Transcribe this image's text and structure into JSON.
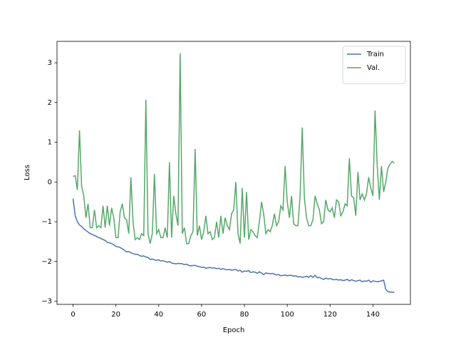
{
  "chart_data": {
    "type": "line",
    "xlabel": "Epoch",
    "ylabel": "Loss",
    "x": [
      0,
      1,
      2,
      3,
      4,
      5,
      6,
      7,
      8,
      9,
      10,
      11,
      12,
      13,
      14,
      15,
      16,
      17,
      18,
      19,
      20,
      21,
      22,
      23,
      24,
      25,
      26,
      27,
      28,
      29,
      30,
      31,
      32,
      33,
      34,
      35,
      36,
      37,
      38,
      39,
      40,
      41,
      42,
      43,
      44,
      45,
      46,
      47,
      48,
      49,
      50,
      51,
      52,
      53,
      54,
      55,
      56,
      57,
      58,
      59,
      60,
      61,
      62,
      63,
      64,
      65,
      66,
      67,
      68,
      69,
      70,
      71,
      72,
      73,
      74,
      75,
      76,
      77,
      78,
      79,
      80,
      81,
      82,
      83,
      84,
      85,
      86,
      87,
      88,
      89,
      90,
      91,
      92,
      93,
      94,
      95,
      96,
      97,
      98,
      99,
      100,
      101,
      102,
      103,
      104,
      105,
      106,
      107,
      108,
      109,
      110,
      111,
      112,
      113,
      114,
      115,
      116,
      117,
      118,
      119,
      120,
      121,
      122,
      123,
      124,
      125,
      126,
      127,
      128,
      129,
      130,
      131,
      132,
      133,
      134,
      135,
      136,
      137,
      138,
      139,
      140,
      141,
      142,
      143,
      144,
      145,
      146,
      147,
      148,
      149,
      150
    ],
    "series": [
      {
        "name": "Train",
        "color": "#4c72b0",
        "values": [
          -0.42,
          -0.85,
          -1.0,
          -1.08,
          -1.12,
          -1.18,
          -1.22,
          -1.26,
          -1.3,
          -1.32,
          -1.35,
          -1.37,
          -1.4,
          -1.42,
          -1.45,
          -1.47,
          -1.52,
          -1.53,
          -1.55,
          -1.58,
          -1.62,
          -1.63,
          -1.65,
          -1.68,
          -1.72,
          -1.76,
          -1.75,
          -1.78,
          -1.8,
          -1.82,
          -1.82,
          -1.85,
          -1.87,
          -1.86,
          -1.89,
          -1.9,
          -1.95,
          -1.94,
          -1.96,
          -1.97,
          -1.96,
          -1.99,
          -1.98,
          -2.0,
          -2.02,
          -2.0,
          -2.04,
          -2.05,
          -2.06,
          -2.05,
          -2.05,
          -2.06,
          -2.08,
          -2.07,
          -2.1,
          -2.11,
          -2.1,
          -2.1,
          -2.12,
          -2.13,
          -2.15,
          -2.14,
          -2.17,
          -2.16,
          -2.15,
          -2.17,
          -2.16,
          -2.18,
          -2.17,
          -2.2,
          -2.18,
          -2.2,
          -2.21,
          -2.2,
          -2.22,
          -2.21,
          -2.2,
          -2.24,
          -2.22,
          -2.27,
          -2.24,
          -2.25,
          -2.23,
          -2.28,
          -2.26,
          -2.27,
          -2.3,
          -2.26,
          -2.29,
          -2.33,
          -2.29,
          -2.3,
          -2.31,
          -2.3,
          -2.32,
          -2.34,
          -2.33,
          -2.36,
          -2.35,
          -2.34,
          -2.36,
          -2.35,
          -2.35,
          -2.37,
          -2.36,
          -2.39,
          -2.38,
          -2.4,
          -2.39,
          -2.37,
          -2.4,
          -2.36,
          -2.4,
          -2.35,
          -2.41,
          -2.4,
          -2.43,
          -2.45,
          -2.42,
          -2.44,
          -2.43,
          -2.45,
          -2.46,
          -2.45,
          -2.47,
          -2.46,
          -2.48,
          -2.47,
          -2.45,
          -2.49,
          -2.46,
          -2.48,
          -2.5,
          -2.48,
          -2.47,
          -2.51,
          -2.49,
          -2.5,
          -2.47,
          -2.52,
          -2.49,
          -2.5,
          -2.51,
          -2.5,
          -2.49,
          -2.47,
          -2.7,
          -2.76,
          -2.77,
          -2.77,
          -2.78
        ]
      },
      {
        "name": "Val.",
        "color": "#55a868",
        "values": [
          0.14,
          0.16,
          -0.2,
          1.3,
          -0.1,
          -0.35,
          -0.9,
          -0.55,
          -1.15,
          -1.15,
          -0.7,
          -1.15,
          -1.1,
          -1.15,
          -0.6,
          -1.15,
          -0.6,
          -1.1,
          -0.65,
          -0.9,
          -1.4,
          -1.4,
          -0.75,
          -0.55,
          -0.9,
          -0.95,
          -1.3,
          0.12,
          -1.0,
          -1.45,
          -1.4,
          -1.45,
          -1.3,
          -1.35,
          2.07,
          -1.3,
          -1.55,
          -1.3,
          0.2,
          -1.3,
          -1.2,
          -1.4,
          -1.4,
          -1.15,
          -1.4,
          0.5,
          -1.4,
          -0.35,
          -0.8,
          -1.1,
          3.24,
          -1.3,
          -1.15,
          -1.55,
          -1.55,
          -1.35,
          -1.25,
          0.83,
          -1.35,
          -1.1,
          -1.45,
          -1.25,
          -0.85,
          -1.3,
          -1.25,
          -1.45,
          -1.4,
          -1.0,
          -1.4,
          -0.85,
          -1.3,
          -0.9,
          -1.1,
          -1.2,
          -0.8,
          -0.7,
          0.0,
          -1.3,
          -1.55,
          -0.15,
          -1.4,
          -0.25,
          -1.45,
          -1.2,
          -1.25,
          -1.35,
          -1.4,
          -1.0,
          -0.5,
          -0.8,
          -1.3,
          -1.2,
          -1.25,
          -1.1,
          -0.8,
          -1.1,
          -1.0,
          -0.6,
          -0.7,
          0.4,
          -0.5,
          -0.9,
          -0.35,
          -1.05,
          -1.1,
          -1.1,
          -0.35,
          1.37,
          -0.4,
          -0.9,
          -1.1,
          -1.1,
          -0.95,
          -0.35,
          -0.55,
          -0.7,
          -1.05,
          -1.0,
          -0.45,
          -0.7,
          -0.75,
          -0.65,
          -0.9,
          -0.45,
          -0.5,
          -0.85,
          -0.75,
          -0.55,
          -0.6,
          0.6,
          -0.35,
          -0.4,
          -0.85,
          0.25,
          -0.45,
          -0.3,
          -0.45,
          -0.3,
          0.12,
          -0.15,
          -0.35,
          1.8,
          0.4,
          -0.45,
          0.4,
          -0.25,
          0.0,
          0.35,
          0.45,
          0.52,
          0.47
        ]
      }
    ],
    "xlim": [
      -7.5,
      157.5
    ],
    "xticks": [
      0,
      20,
      40,
      60,
      80,
      100,
      120,
      140
    ],
    "ylim": [
      -3.08,
      3.54
    ],
    "yticks": [
      {
        "value": -3,
        "label": "−3"
      },
      {
        "value": -2,
        "label": "−2"
      },
      {
        "value": -1,
        "label": "−1"
      },
      0,
      1,
      2,
      3
    ],
    "legend": "upper right"
  }
}
